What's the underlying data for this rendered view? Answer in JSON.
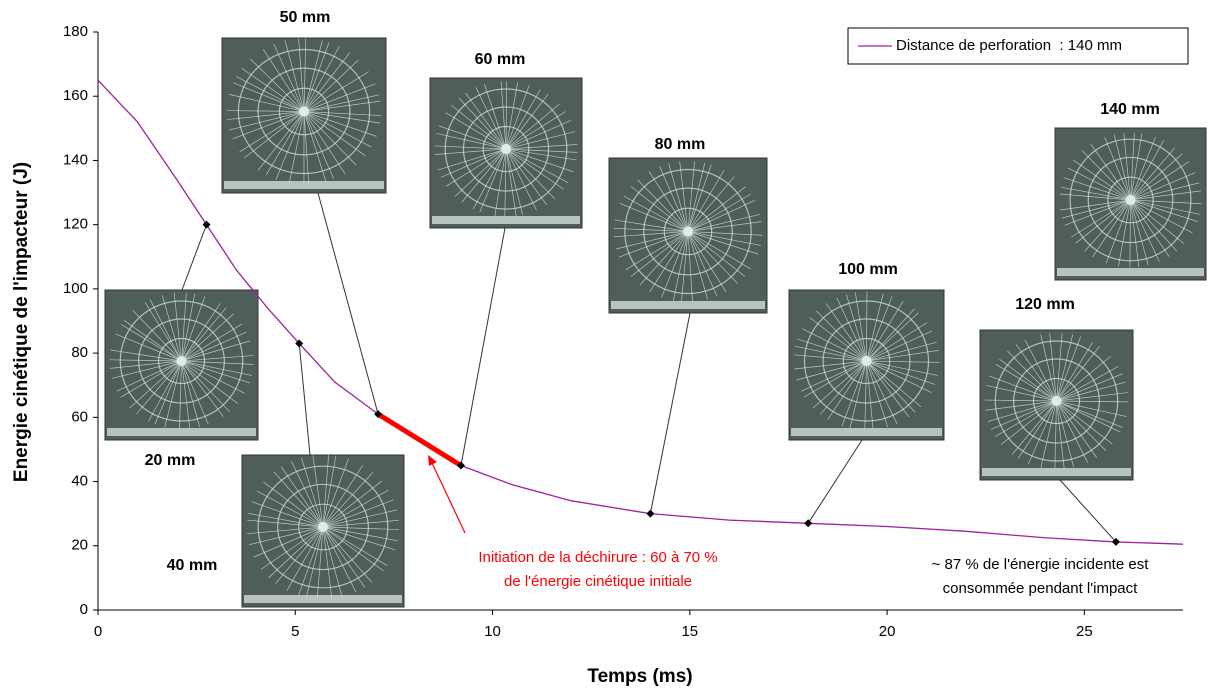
{
  "chart_data": {
    "type": "line",
    "x_label": "Temps (ms)",
    "y_label": "Energie cinétique de l'impacteur (J)",
    "xlim": [
      0,
      27.5
    ],
    "ylim": [
      0,
      180
    ],
    "xticks": [
      0,
      5,
      10,
      15,
      20,
      25
    ],
    "yticks": [
      0,
      20,
      40,
      60,
      80,
      100,
      120,
      140,
      160,
      180
    ],
    "legend": "top-right",
    "series": [
      {
        "name": "Distance de perforation  : 140 mm",
        "color": "#a020a0",
        "x": [
          0,
          1,
          2,
          2.75,
          3.5,
          4.3,
          5.1,
          6,
          7.1,
          8.1,
          9.2,
          10.5,
          12,
          14,
          16,
          18,
          20,
          22,
          24,
          25.8,
          27.5
        ],
        "values": [
          165,
          152,
          134,
          120,
          106,
          94,
          83,
          71,
          61,
          53,
          45,
          39,
          34,
          30,
          28,
          27,
          26,
          24.5,
          22.5,
          21.2,
          20.5
        ]
      }
    ],
    "markers": {
      "x": [
        2.75,
        5.1,
        7.1,
        9.2,
        14,
        18,
        25.8
      ],
      "values": [
        120,
        83,
        61,
        45,
        30,
        27,
        21.2
      ],
      "color": "#000000"
    },
    "highlight": {
      "x": [
        7.1,
        9.2
      ],
      "values": [
        61,
        45
      ],
      "color": "#ff0000"
    },
    "photo_labels": [
      "20 mm",
      "40 mm",
      "50 mm",
      "60 mm",
      "80 mm",
      "100 mm",
      "120 mm",
      "140 mm"
    ],
    "annotation_red": [
      "Initiation de la déchirure : 60 à 70 %",
      "de l'énergie cinétique initiale"
    ],
    "annotation_black": [
      "~ 87 % de l'énergie incidente est",
      "consommée pendant l'impact"
    ]
  }
}
